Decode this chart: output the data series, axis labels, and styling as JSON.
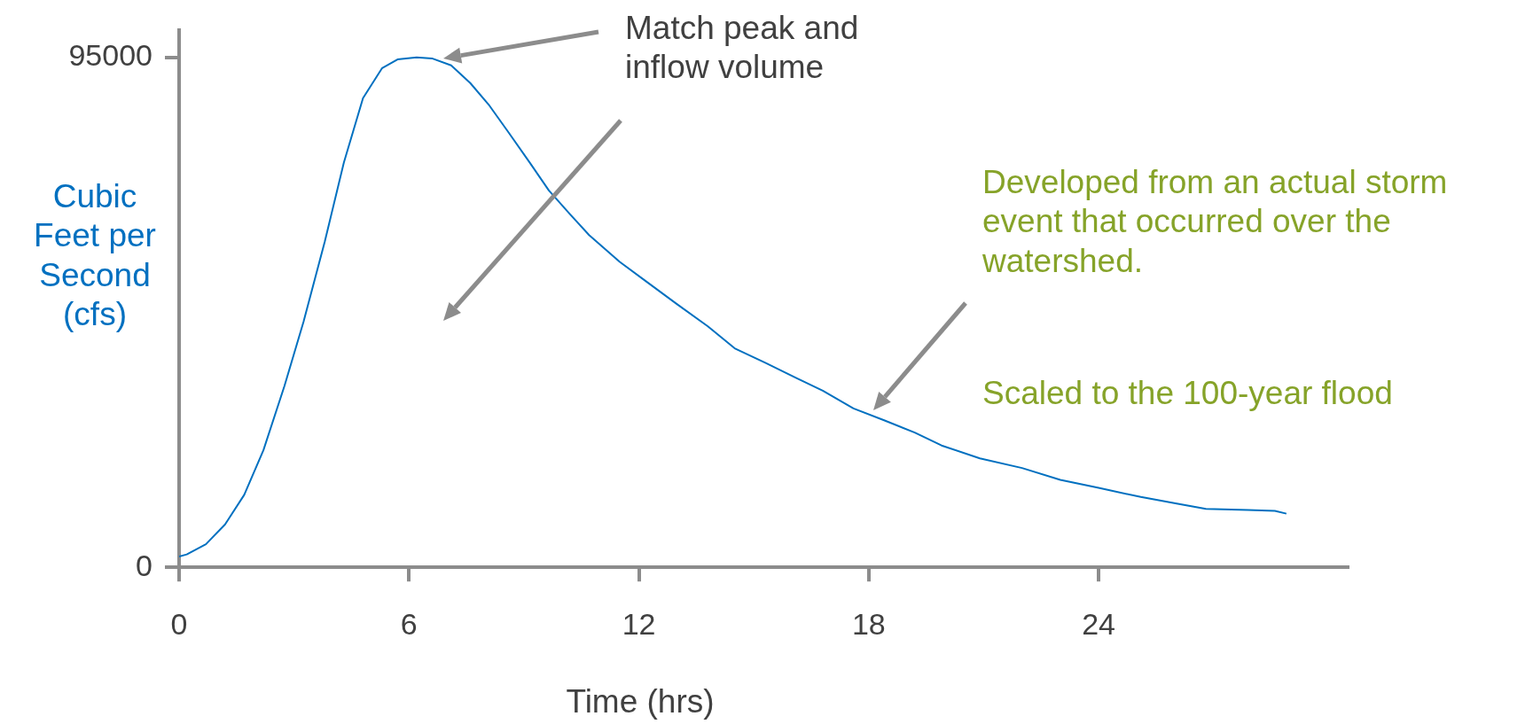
{
  "chart_data": {
    "type": "line",
    "xlabel": "Time (hrs)",
    "ylabel": "Cubic Feet per Second (cfs)",
    "x": [
      0,
      0.2,
      0.7,
      1.2,
      1.7,
      2.2,
      2.75,
      3.25,
      3.8,
      4.3,
      4.8,
      5.3,
      5.7,
      6.2,
      6.6,
      7.1,
      7.6,
      8.1,
      8.6,
      9.15,
      9.65,
      10.2,
      10.7,
      11.5,
      12.2,
      13,
      13.8,
      14.5,
      15.3,
      16.1,
      16.8,
      17.6,
      18.4,
      19.2,
      19.9,
      20.9,
      22,
      23,
      24,
      25.1,
      26.1,
      26.8,
      27.9,
      28.6,
      28.9
    ],
    "series": [
      {
        "color": "#0070c0",
        "values": [
          2000,
          2400,
          4300,
          8000,
          13500,
          21800,
          33800,
          45800,
          60600,
          75400,
          87400,
          93000,
          94600,
          95000,
          94800,
          93500,
          90200,
          86000,
          81000,
          75400,
          70200,
          65800,
          61900,
          56900,
          53200,
          49000,
          44900,
          40800,
          38100,
          35300,
          32900,
          29600,
          27400,
          25100,
          22700,
          20300,
          18500,
          16300,
          14800,
          13100,
          11800,
          10900,
          10700,
          10500,
          10000
        ]
      }
    ],
    "xlim": [
      0,
      30.5
    ],
    "ylim": [
      0,
      100000
    ],
    "xticks": [
      0,
      6,
      12,
      18,
      24
    ],
    "yticks": [
      0,
      95000
    ],
    "marker": "none",
    "line_style": "solid",
    "grid": false,
    "legend": false,
    "annotations": [
      "Match peak and inflow volume",
      "Developed from an actual storm event that occurred over the watershed.",
      "Scaled to the 100-year flood"
    ]
  }
}
